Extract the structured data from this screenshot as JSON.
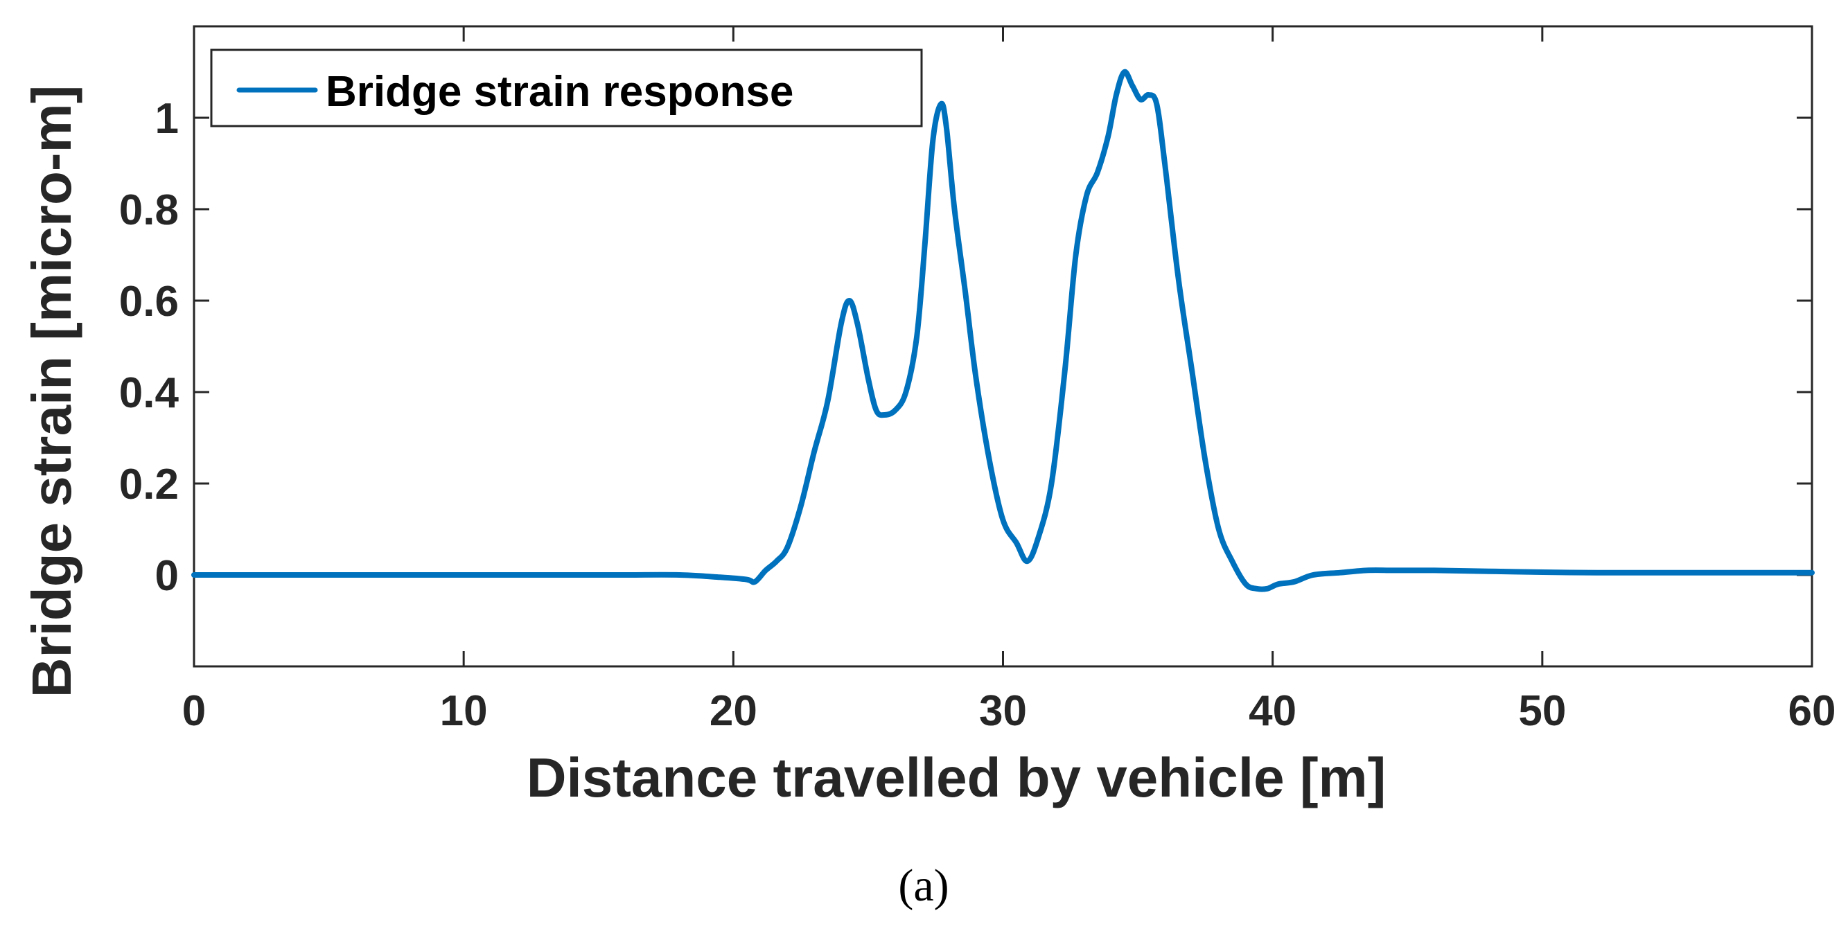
{
  "chart_data": {
    "type": "line",
    "xlabel": "Distance travelled by vehicle [m]",
    "ylabel": "Bridge strain [micro-m]",
    "xlim": [
      0,
      60
    ],
    "ylim": [
      -0.2,
      1.2
    ],
    "xticks": [
      0,
      10,
      20,
      30,
      40,
      50,
      60
    ],
    "yticks": [
      0,
      0.2,
      0.4,
      0.6,
      0.8,
      1
    ],
    "xtick_labels": [
      "0",
      "10",
      "20",
      "30",
      "40",
      "50",
      "60"
    ],
    "ytick_labels": [
      "0",
      "0.2",
      "0.4",
      "0.6",
      "0.8",
      "1"
    ],
    "grid": false,
    "legend_position": "top-left",
    "series": [
      {
        "name": "Bridge strain response",
        "color": "#0072BD",
        "x": [
          0,
          2,
          4,
          6,
          8,
          10,
          12,
          14,
          16,
          18,
          19.5,
          20.5,
          20.8,
          21.2,
          21.6,
          22,
          22.5,
          23,
          23.5,
          24,
          24.3,
          24.6,
          25,
          25.3,
          25.6,
          26,
          26.4,
          26.8,
          27.1,
          27.4,
          27.7,
          27.9,
          28.2,
          28.6,
          29,
          29.5,
          30,
          30.5,
          30.9,
          31.3,
          31.8,
          32.3,
          32.7,
          33.1,
          33.5,
          33.9,
          34.2,
          34.5,
          34.8,
          35.1,
          35.4,
          35.7,
          36,
          36.5,
          37,
          37.5,
          38,
          38.5,
          39,
          39.4,
          39.8,
          40.2,
          40.8,
          41.5,
          42.5,
          43.5,
          44.5,
          46,
          48,
          50,
          52,
          54,
          56,
          58,
          60
        ],
        "y": [
          0.0,
          0.0,
          0.0,
          0.0,
          0.0,
          0.0,
          0.0,
          0.0,
          0.0,
          0.0,
          -0.005,
          -0.01,
          -0.015,
          0.01,
          0.03,
          0.06,
          0.15,
          0.27,
          0.38,
          0.55,
          0.6,
          0.55,
          0.43,
          0.36,
          0.35,
          0.36,
          0.4,
          0.52,
          0.72,
          0.95,
          1.03,
          0.98,
          0.8,
          0.62,
          0.43,
          0.25,
          0.12,
          0.07,
          0.03,
          0.08,
          0.2,
          0.45,
          0.7,
          0.83,
          0.88,
          0.96,
          1.05,
          1.1,
          1.07,
          1.04,
          1.05,
          1.03,
          0.9,
          0.65,
          0.45,
          0.25,
          0.1,
          0.03,
          -0.02,
          -0.03,
          -0.03,
          -0.02,
          -0.015,
          0.0,
          0.005,
          0.01,
          0.01,
          0.01,
          0.008,
          0.006,
          0.005,
          0.005,
          0.005,
          0.005,
          0.005
        ]
      }
    ],
    "caption": "(a)"
  }
}
